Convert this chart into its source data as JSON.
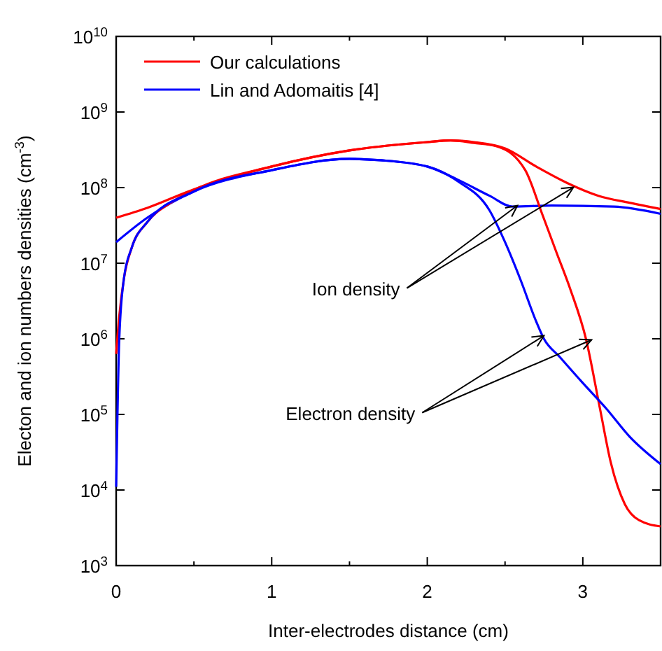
{
  "chart_data": {
    "type": "line",
    "xlabel": "Inter-electrodes distance (cm)",
    "ylabel": "Electon and ion numbers densities (cm$^{-3}$)",
    "log": "y",
    "xlim": [
      0,
      3.5
    ],
    "ylim": [
      1000,
      10000000000
    ],
    "xticks": [
      0,
      {
        "value": 0.5,
        "label": null
      },
      1,
      {
        "value": 1.5,
        "label": null
      },
      2,
      {
        "value": 2.5,
        "label": null
      },
      3,
      {
        "value": 3.5,
        "label": null
      }
    ],
    "yticks": [
      {
        "value": 1000,
        "label": "10$^{3}$"
      },
      {
        "value": 10000,
        "label": "10$^{4}$"
      },
      {
        "value": 100000,
        "label": "10$^{5}$"
      },
      {
        "value": 1000000,
        "label": "10$^{6}$"
      },
      {
        "value": 10000000,
        "label": "10$^{7}$"
      },
      {
        "value": 100000000,
        "label": "10$^{8}$"
      },
      {
        "value": 1000000000,
        "label": "10$^{9}$"
      },
      {
        "value": 10000000000,
        "label": "10$^{10}$"
      }
    ],
    "legend": "top left",
    "grid": false,
    "marker": "none",
    "line_style": "solid",
    "series": [
      {
        "name": "Our calculations",
        "color": "#ff0000",
        "x": [
          0,
          0.2,
          0.5,
          1,
          1.5,
          2,
          2.15,
          2.3,
          2.5,
          2.7,
          2.9,
          3.1,
          3.3,
          3.5
        ],
        "values": [
          40000000.0,
          54000000.0,
          95000000.0,
          190000000.0,
          310000000.0,
          400000000.0,
          420000000.0,
          400000000.0,
          330000000.0,
          190000000.0,
          115000000.0,
          78000000.0,
          63000000.0,
          52000000.0
        ]
      },
      {
        "name": "Lin and Adomaitis [4]",
        "color": "#0000ff",
        "x": [
          0,
          0.2,
          0.5,
          1,
          1.5,
          1.7,
          2,
          2.2,
          2.4,
          2.55,
          2.8,
          3.2,
          3.5
        ],
        "values": [
          19000000.0,
          40000000.0,
          89000000.0,
          170000000.0,
          240000000.0,
          230000000.0,
          190000000.0,
          126000000.0,
          78000000.0,
          56000000.0,
          58000000.0,
          56000000.0,
          45000000.0
        ]
      },
      {
        "color": "#ff0000",
        "x": [
          0,
          0.02,
          0.05,
          0.1,
          0.2,
          0.35,
          0.5,
          1,
          1.5,
          2,
          2.15,
          2.3,
          2.45,
          2.63,
          2.74,
          2.83,
          2.92,
          3.02,
          3.11,
          3.18,
          3.27,
          3.36,
          3.5
        ],
        "values": [
          630000.0,
          2000000.0,
          6300000.0,
          16000000.0,
          35000000.0,
          63000000.0,
          93000000.0,
          190000000.0,
          310000000.0,
          400000000.0,
          420000000.0,
          390000000.0,
          350000000.0,
          170000000.0,
          44000000.0,
          14000000.0,
          4500000.0,
          1000000.0,
          120000.0,
          23000.0,
          6500.0,
          4000.0,
          3300.0
        ]
      },
      {
        "color": "#0000ff",
        "x": [
          0,
          0.02,
          0.05,
          0.1,
          0.2,
          0.5,
          1,
          1.5,
          1.7,
          2,
          2.2,
          2.4,
          2.5,
          2.6,
          2.7,
          2.75,
          2.85,
          3.0,
          3.15,
          3.3,
          3.5
        ],
        "values": [
          11000.0,
          1000000.0,
          6300000.0,
          16000000.0,
          35000000.0,
          89000000.0,
          170000000.0,
          240000000.0,
          230000000.0,
          190000000.0,
          120000000.0,
          50000000.0,
          19000000.0,
          6000000.0,
          1700000.0,
          1000000.0,
          580000.0,
          260000.0,
          120000.0,
          51000.0,
          22000.0
        ]
      }
    ],
    "annotations": [
      {
        "text": "Ion density",
        "x": 2.58,
        "y": 58000000.0
      },
      {
        "text": "Electron density",
        "x": 2.75,
        "y": 1100000.0
      }
    ]
  }
}
